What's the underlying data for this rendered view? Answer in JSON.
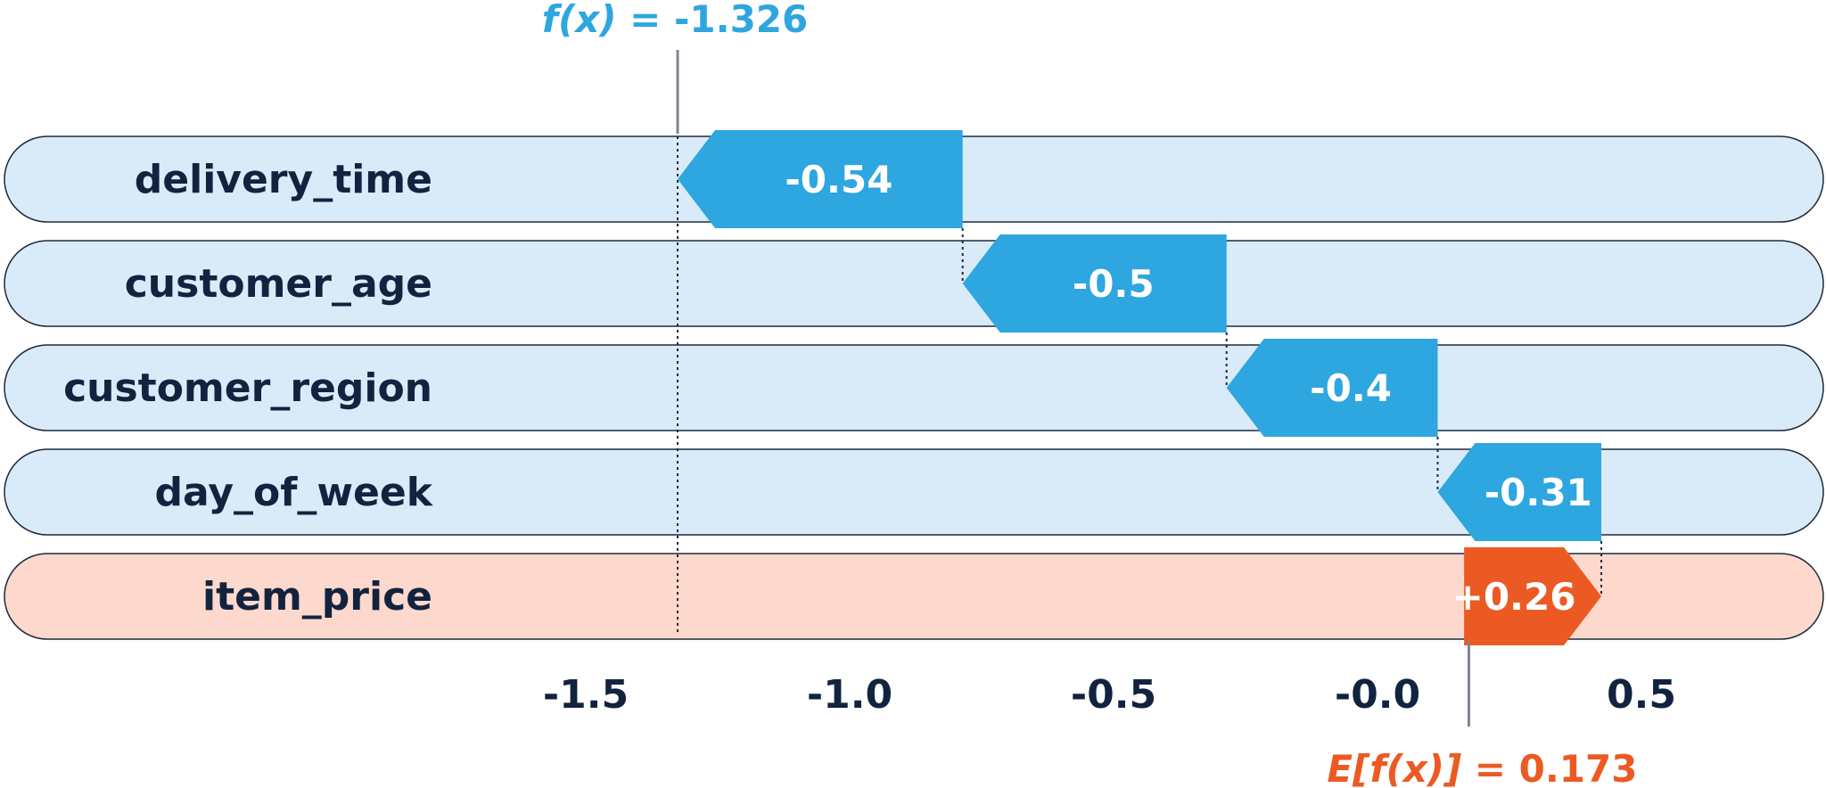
{
  "chart_data": {
    "type": "waterfall",
    "base_value": 0.173,
    "output_value": -1.326,
    "fx_label_prefix": "f(x)",
    "fx_label_value": "= -1.326",
    "efx_label_prefix": "E[f(x)]",
    "efx_label_value": "= 0.173",
    "features": [
      {
        "name": "delivery_time",
        "value": -0.54,
        "label": "-0.54"
      },
      {
        "name": "customer_age",
        "value": -0.5,
        "label": "-0.5"
      },
      {
        "name": "customer_region",
        "value": -0.4,
        "label": "-0.4"
      },
      {
        "name": "day_of_week",
        "value": -0.31,
        "label": "-0.31"
      },
      {
        "name": "item_price",
        "value": 0.26,
        "label": "+0.26"
      }
    ],
    "x_ticks": [
      -1.5,
      -1.0,
      -0.5,
      -0.0,
      0.5
    ],
    "x_tick_labels": [
      "-1.5",
      "-1.0",
      "-0.5",
      "-0.0",
      "0.5"
    ],
    "xlim": [
      -2.6,
      0.9
    ],
    "grid": false,
    "colors": {
      "negative": "#2ea6df",
      "positive": "#ec5a24",
      "negative_track": "#d9ebf8",
      "positive_track": "#fdd8cc",
      "fx_text": "#2ea6df",
      "efx_text": "#ec5a24",
      "text": "#12233f"
    }
  }
}
